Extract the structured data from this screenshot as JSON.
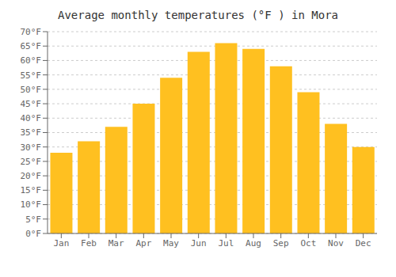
{
  "chart_data": {
    "type": "bar",
    "title": "Average monthly temperatures (°F ) in Mora",
    "categories": [
      "Jan",
      "Feb",
      "Mar",
      "Apr",
      "May",
      "Jun",
      "Jul",
      "Aug",
      "Sep",
      "Oct",
      "Nov",
      "Dec"
    ],
    "values": [
      28,
      32,
      37,
      45,
      54,
      63,
      66,
      64,
      58,
      49,
      38,
      30
    ],
    "color": "#FFC020",
    "ylim": [
      0,
      70
    ],
    "yticks": [
      {
        "value": 0,
        "label": "0°F"
      },
      {
        "value": 5,
        "label": "5°F"
      },
      {
        "value": 10,
        "label": "10°F"
      },
      {
        "value": 15,
        "label": "15°F"
      },
      {
        "value": 20,
        "label": "20°F"
      },
      {
        "value": 25,
        "label": "25°F"
      },
      {
        "value": 30,
        "label": "30°F"
      },
      {
        "value": 35,
        "label": "35°F"
      },
      {
        "value": 40,
        "label": "40°F"
      },
      {
        "value": 45,
        "label": "45°F"
      },
      {
        "value": 50,
        "label": "50°F"
      },
      {
        "value": 55,
        "label": "55°F"
      },
      {
        "value": 60,
        "label": "60°F"
      },
      {
        "value": 65,
        "label": "65°F"
      },
      {
        "value": 70,
        "label": "70°F"
      }
    ],
    "grid": true
  }
}
